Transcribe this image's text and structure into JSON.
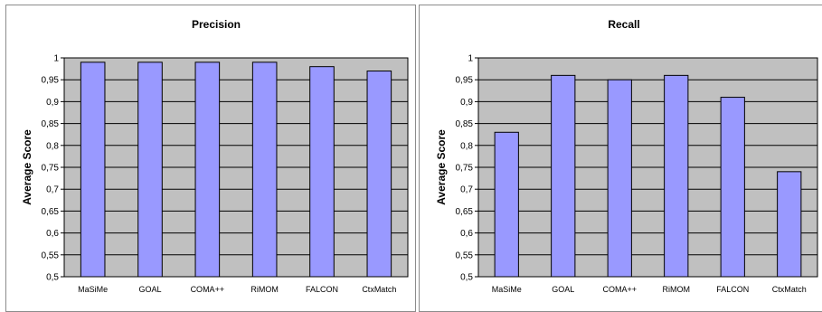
{
  "chart_data": [
    {
      "type": "bar",
      "title": "Precision",
      "xlabel": "",
      "ylabel": "Average Score",
      "categories": [
        "MaSiMe",
        "GOAL",
        "COMA++",
        "RiMOM",
        "FALCON",
        "CtxMatch"
      ],
      "values": [
        0.99,
        0.99,
        0.99,
        0.99,
        0.98,
        0.97
      ],
      "ylim": [
        0.5,
        1
      ],
      "yticks": [
        "0,5",
        "0,55",
        "0,6",
        "0,65",
        "0,7",
        "0,75",
        "0,8",
        "0,85",
        "0,9",
        "0,95",
        "1"
      ],
      "grid": true,
      "legend": "none",
      "colors": {
        "bar": "#9999ff",
        "bar_edge": "#000000",
        "plot_background": "#c0c0c0",
        "gridline": "#000000"
      }
    },
    {
      "type": "bar",
      "title": "Recall",
      "xlabel": "",
      "ylabel": "Average Score",
      "categories": [
        "MaSiMe",
        "GOAL",
        "COMA++",
        "RiMOM",
        "FALCON",
        "CtxMatch"
      ],
      "values": [
        0.83,
        0.96,
        0.95,
        0.96,
        0.91,
        0.74
      ],
      "ylim": [
        0.5,
        1
      ],
      "yticks": [
        "0,5",
        "0,55",
        "0,6",
        "0,65",
        "0,7",
        "0,75",
        "0,8",
        "0,85",
        "0,9",
        "0,95",
        "1"
      ],
      "grid": true,
      "legend": "none",
      "colors": {
        "bar": "#9999ff",
        "bar_edge": "#000000",
        "plot_background": "#c0c0c0",
        "gridline": "#000000"
      }
    }
  ]
}
